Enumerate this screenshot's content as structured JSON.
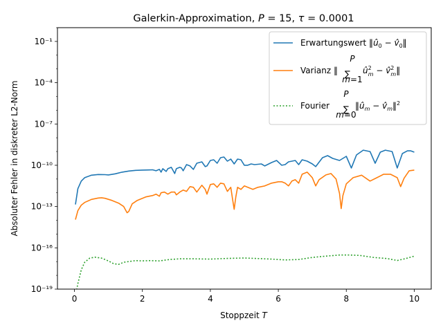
{
  "chart_data": {
    "type": "line",
    "title": "Galerkin-Approximation, P = 15, τ = 0.0001",
    "xlabel": "Stoppzeit T",
    "ylabel": "Absoluter Fehler in diskreter L2-Norm",
    "xlim": [
      -0.5,
      10.5
    ],
    "ylim_log10": [
      -19,
      0
    ],
    "yscale": "log",
    "x_ticks": [
      0,
      2,
      4,
      6,
      8,
      10
    ],
    "x_tick_labels": [
      "0",
      "2",
      "4",
      "6",
      "8",
      "10"
    ],
    "y_ticks_log10": [
      -19,
      -16,
      -13,
      -10,
      -7,
      -4,
      -1
    ],
    "y_tick_labels": [
      "10⁻¹⁹",
      "10⁻¹⁶",
      "10⁻¹³",
      "10⁻¹⁰",
      "10⁻⁷",
      "10⁻⁴",
      "10⁻¹"
    ],
    "legend_position": "top-right",
    "grid": false,
    "series": [
      {
        "name": "Erwartungswert ‖û₀ − v̂₀‖",
        "color": "#1f77b4",
        "style": "solid",
        "points_log10": [
          [
            0.03,
            -12.85
          ],
          [
            0.1,
            -11.7
          ],
          [
            0.2,
            -11.15
          ],
          [
            0.3,
            -10.9
          ],
          [
            0.5,
            -10.72
          ],
          [
            0.7,
            -10.67
          ],
          [
            0.9,
            -10.68
          ],
          [
            1.0,
            -10.7
          ],
          [
            1.2,
            -10.62
          ],
          [
            1.4,
            -10.5
          ],
          [
            1.6,
            -10.42
          ],
          [
            1.8,
            -10.37
          ],
          [
            2.0,
            -10.35
          ],
          [
            2.2,
            -10.34
          ],
          [
            2.3,
            -10.33
          ],
          [
            2.4,
            -10.4
          ],
          [
            2.5,
            -10.3
          ],
          [
            2.55,
            -10.5
          ],
          [
            2.6,
            -10.25
          ],
          [
            2.7,
            -10.45
          ],
          [
            2.75,
            -10.25
          ],
          [
            2.85,
            -10.15
          ],
          [
            2.95,
            -10.6
          ],
          [
            3.0,
            -10.25
          ],
          [
            3.1,
            -10.15
          ],
          [
            3.15,
            -10.2
          ],
          [
            3.2,
            -10.4
          ],
          [
            3.3,
            -9.95
          ],
          [
            3.4,
            -10.05
          ],
          [
            3.5,
            -10.3
          ],
          [
            3.6,
            -9.85
          ],
          [
            3.75,
            -9.75
          ],
          [
            3.85,
            -10.1
          ],
          [
            3.9,
            -10.05
          ],
          [
            4.0,
            -9.65
          ],
          [
            4.1,
            -9.6
          ],
          [
            4.2,
            -9.85
          ],
          [
            4.3,
            -9.45
          ],
          [
            4.4,
            -9.4
          ],
          [
            4.5,
            -9.7
          ],
          [
            4.6,
            -9.55
          ],
          [
            4.7,
            -9.9
          ],
          [
            4.8,
            -9.55
          ],
          [
            4.9,
            -9.6
          ],
          [
            5.0,
            -10.0
          ],
          [
            5.1,
            -10.0
          ],
          [
            5.2,
            -9.9
          ],
          [
            5.3,
            -9.95
          ],
          [
            5.5,
            -9.9
          ],
          [
            5.6,
            -10.05
          ],
          [
            5.8,
            -9.8
          ],
          [
            5.95,
            -9.65
          ],
          [
            6.1,
            -10.0
          ],
          [
            6.2,
            -9.95
          ],
          [
            6.3,
            -9.75
          ],
          [
            6.5,
            -9.65
          ],
          [
            6.6,
            -9.95
          ],
          [
            6.7,
            -9.6
          ],
          [
            6.85,
            -9.7
          ],
          [
            7.0,
            -9.9
          ],
          [
            7.1,
            -10.1
          ],
          [
            7.3,
            -9.45
          ],
          [
            7.45,
            -9.3
          ],
          [
            7.6,
            -9.5
          ],
          [
            7.8,
            -9.65
          ],
          [
            8.0,
            -9.35
          ],
          [
            8.15,
            -10.2
          ],
          [
            8.3,
            -9.25
          ],
          [
            8.5,
            -8.9
          ],
          [
            8.7,
            -9.0
          ],
          [
            8.85,
            -9.85
          ],
          [
            9.0,
            -9.05
          ],
          [
            9.15,
            -8.9
          ],
          [
            9.35,
            -9.0
          ],
          [
            9.5,
            -10.2
          ],
          [
            9.65,
            -9.15
          ],
          [
            9.8,
            -8.95
          ],
          [
            9.9,
            -8.95
          ],
          [
            10.0,
            -9.05
          ]
        ]
      },
      {
        "name": "Varianz ‖Σ_{m=1}^{P} û²ₘ − v̂²ₘ‖",
        "color": "#ff7f0e",
        "style": "solid",
        "points_log10": [
          [
            0.03,
            -13.95
          ],
          [
            0.1,
            -13.3
          ],
          [
            0.2,
            -12.9
          ],
          [
            0.3,
            -12.7
          ],
          [
            0.5,
            -12.48
          ],
          [
            0.7,
            -12.38
          ],
          [
            0.8,
            -12.36
          ],
          [
            0.9,
            -12.4
          ],
          [
            1.1,
            -12.55
          ],
          [
            1.3,
            -12.75
          ],
          [
            1.45,
            -13.0
          ],
          [
            1.55,
            -13.45
          ],
          [
            1.6,
            -13.35
          ],
          [
            1.7,
            -12.8
          ],
          [
            1.85,
            -12.55
          ],
          [
            2.0,
            -12.4
          ],
          [
            2.1,
            -12.3
          ],
          [
            2.2,
            -12.25
          ],
          [
            2.3,
            -12.2
          ],
          [
            2.4,
            -12.1
          ],
          [
            2.5,
            -12.25
          ],
          [
            2.55,
            -12.0
          ],
          [
            2.65,
            -11.95
          ],
          [
            2.75,
            -12.1
          ],
          [
            2.85,
            -11.95
          ],
          [
            2.95,
            -11.95
          ],
          [
            3.0,
            -12.15
          ],
          [
            3.1,
            -11.95
          ],
          [
            3.2,
            -11.8
          ],
          [
            3.3,
            -11.9
          ],
          [
            3.4,
            -11.55
          ],
          [
            3.5,
            -11.6
          ],
          [
            3.6,
            -11.95
          ],
          [
            3.75,
            -11.45
          ],
          [
            3.85,
            -11.75
          ],
          [
            3.9,
            -12.1
          ],
          [
            4.0,
            -11.4
          ],
          [
            4.1,
            -11.35
          ],
          [
            4.2,
            -11.6
          ],
          [
            4.3,
            -11.3
          ],
          [
            4.4,
            -11.35
          ],
          [
            4.5,
            -11.9
          ],
          [
            4.6,
            -11.6
          ],
          [
            4.65,
            -12.4
          ],
          [
            4.7,
            -13.2
          ],
          [
            4.75,
            -12.3
          ],
          [
            4.8,
            -11.6
          ],
          [
            4.9,
            -11.75
          ],
          [
            5.0,
            -11.5
          ],
          [
            5.15,
            -11.65
          ],
          [
            5.25,
            -11.75
          ],
          [
            5.4,
            -11.6
          ],
          [
            5.6,
            -11.5
          ],
          [
            5.8,
            -11.3
          ],
          [
            6.0,
            -11.2
          ],
          [
            6.1,
            -11.2
          ],
          [
            6.2,
            -11.3
          ],
          [
            6.3,
            -11.5
          ],
          [
            6.4,
            -11.15
          ],
          [
            6.5,
            -11.05
          ],
          [
            6.6,
            -11.3
          ],
          [
            6.7,
            -10.65
          ],
          [
            6.85,
            -10.5
          ],
          [
            7.0,
            -10.9
          ],
          [
            7.1,
            -11.5
          ],
          [
            7.2,
            -11.05
          ],
          [
            7.4,
            -10.7
          ],
          [
            7.55,
            -10.6
          ],
          [
            7.7,
            -11.0
          ],
          [
            7.8,
            -12.05
          ],
          [
            7.85,
            -13.15
          ],
          [
            7.9,
            -12.2
          ],
          [
            8.0,
            -11.35
          ],
          [
            8.2,
            -10.9
          ],
          [
            8.45,
            -10.72
          ],
          [
            8.7,
            -11.15
          ],
          [
            8.9,
            -10.9
          ],
          [
            9.1,
            -10.65
          ],
          [
            9.3,
            -10.65
          ],
          [
            9.5,
            -10.9
          ],
          [
            9.6,
            -11.55
          ],
          [
            9.7,
            -10.95
          ],
          [
            9.85,
            -10.4
          ],
          [
            10.0,
            -10.35
          ]
        ]
      },
      {
        "name": "Fourier Σ_{m=0}^{P} ‖ûₘ − v̂ₘ‖²",
        "color": "#2ca02c",
        "style": "dotted",
        "points_log10": [
          [
            0.03,
            -19.5
          ],
          [
            0.1,
            -18.6
          ],
          [
            0.2,
            -17.6
          ],
          [
            0.3,
            -17.05
          ],
          [
            0.45,
            -16.75
          ],
          [
            0.6,
            -16.68
          ],
          [
            0.8,
            -16.75
          ],
          [
            1.0,
            -16.95
          ],
          [
            1.15,
            -17.15
          ],
          [
            1.3,
            -17.2
          ],
          [
            1.45,
            -17.05
          ],
          [
            1.65,
            -16.98
          ],
          [
            1.8,
            -16.93
          ],
          [
            2.0,
            -16.95
          ],
          [
            2.2,
            -16.93
          ],
          [
            2.5,
            -16.95
          ],
          [
            2.8,
            -16.85
          ],
          [
            3.1,
            -16.8
          ],
          [
            3.5,
            -16.8
          ],
          [
            4.0,
            -16.82
          ],
          [
            4.5,
            -16.77
          ],
          [
            5.0,
            -16.74
          ],
          [
            5.4,
            -16.78
          ],
          [
            5.8,
            -16.82
          ],
          [
            6.2,
            -16.88
          ],
          [
            6.6,
            -16.85
          ],
          [
            7.0,
            -16.7
          ],
          [
            7.4,
            -16.6
          ],
          [
            7.8,
            -16.52
          ],
          [
            8.1,
            -16.52
          ],
          [
            8.4,
            -16.55
          ],
          [
            8.8,
            -16.7
          ],
          [
            9.2,
            -16.78
          ],
          [
            9.5,
            -16.92
          ],
          [
            9.75,
            -16.78
          ],
          [
            10.0,
            -16.6
          ]
        ]
      }
    ]
  },
  "legend": [
    {
      "label": "Erwartungswert ‖û₀ − v̂₀‖"
    },
    {
      "label": "Varianz ‖Σ û²ₘ − v̂²ₘ‖"
    },
    {
      "label": "Fourier Σ ‖ûₘ − v̂ₘ‖²"
    }
  ]
}
